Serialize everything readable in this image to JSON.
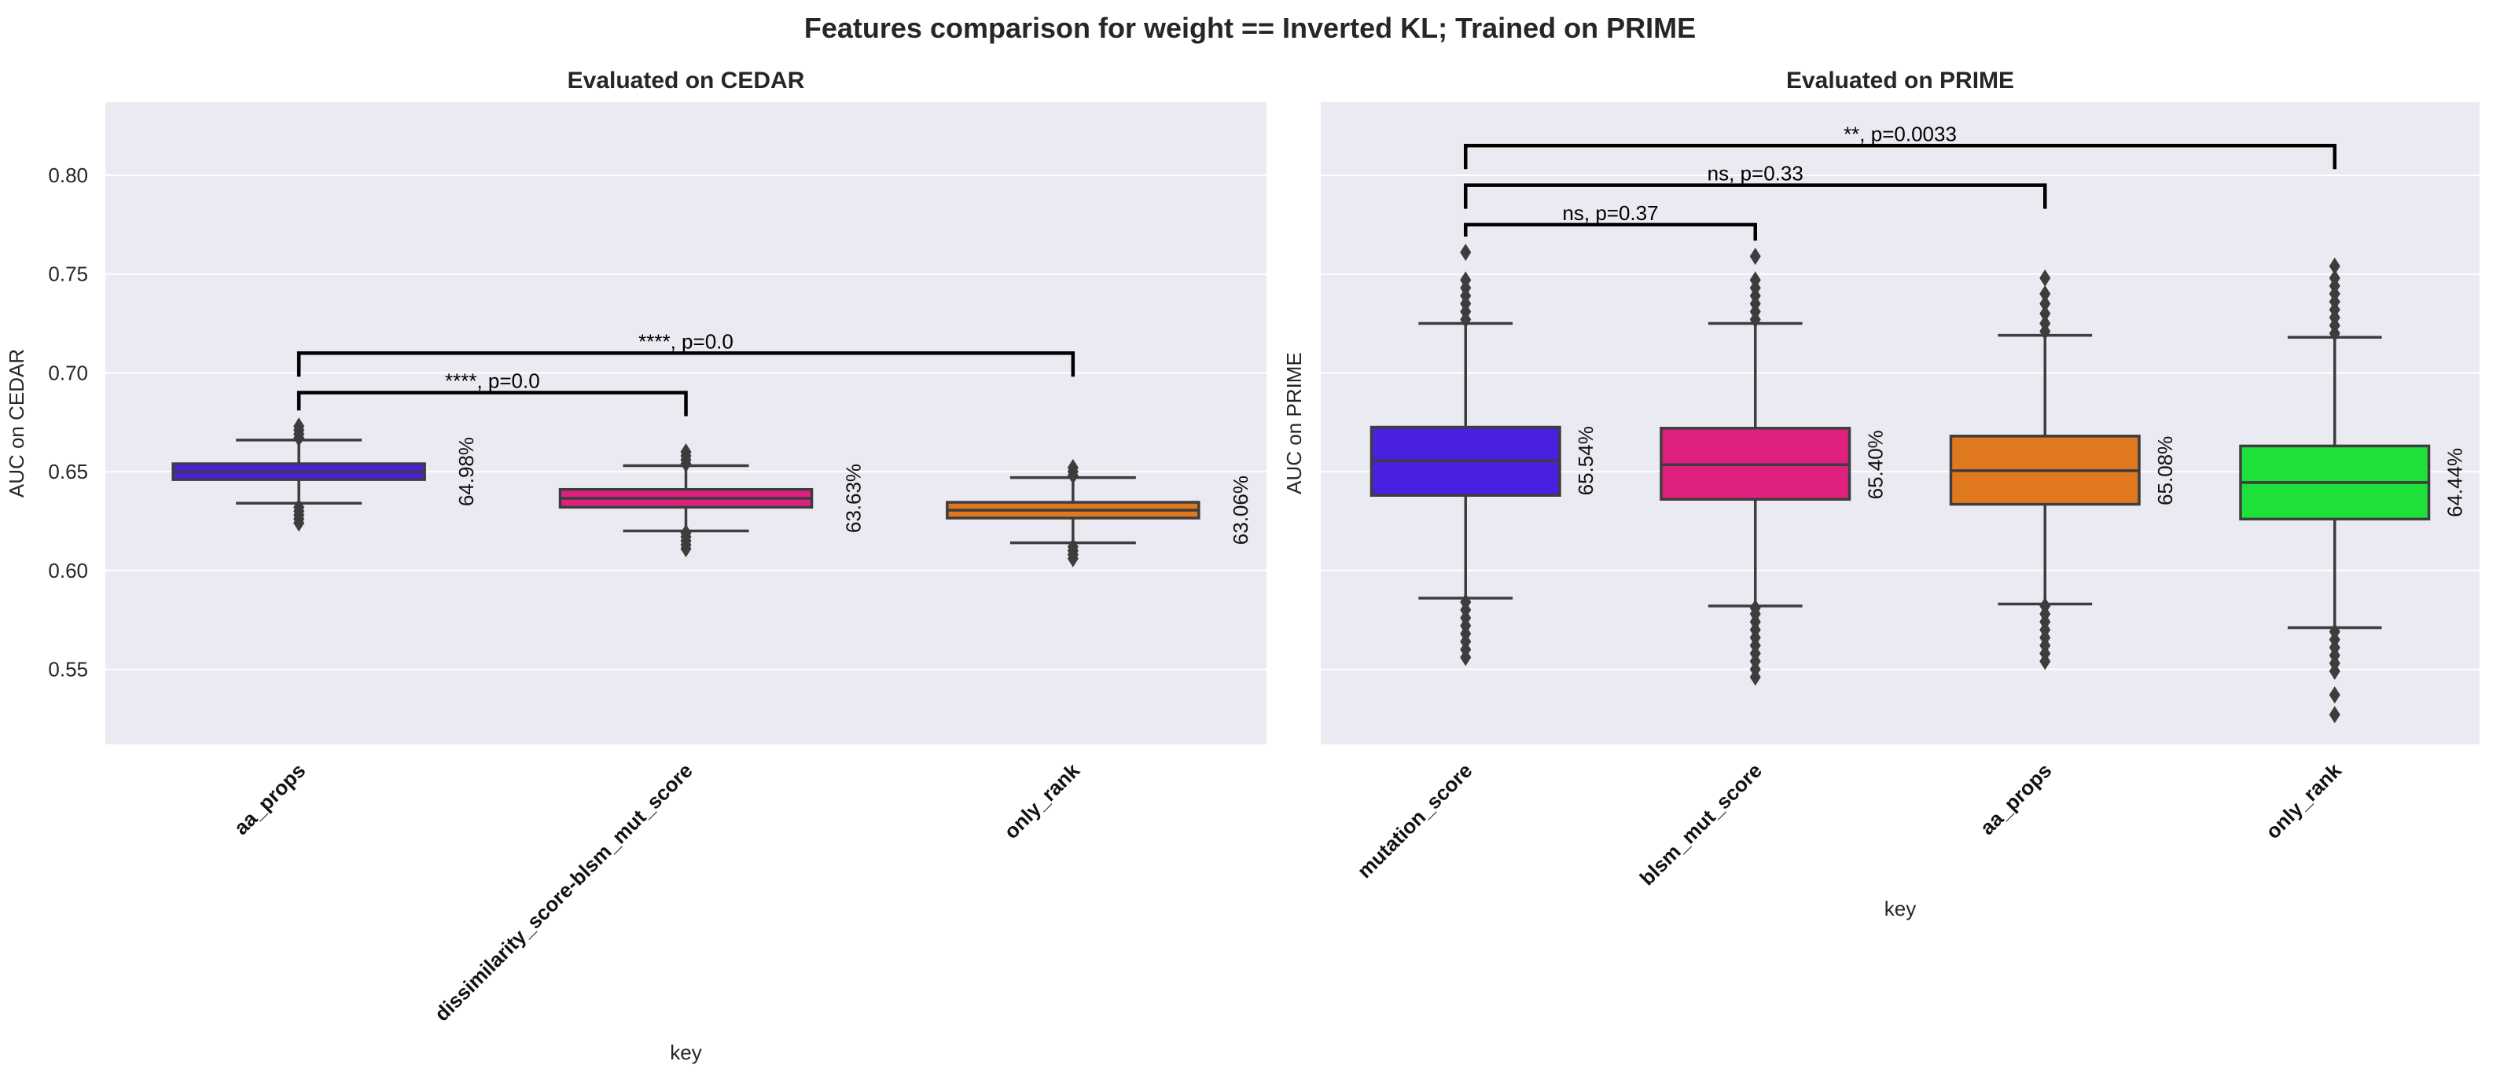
{
  "figure": {
    "suptitle": "Features comparison for weight == Inverted KL; Trained on PRIME"
  },
  "chart_data": [
    {
      "type": "box",
      "title": "Evaluated on CEDAR",
      "xlabel": "key",
      "ylabel": "AUC on CEDAR",
      "ylim": [
        0.512,
        0.837
      ],
      "yticks": [
        0.55,
        0.6,
        0.65,
        0.7,
        0.75,
        0.8
      ],
      "ytick_labels": [
        "0.55",
        "0.60",
        "0.65",
        "0.70",
        "0.75",
        "0.80"
      ],
      "grid": true,
      "background": "#EAEAF2",
      "categories": [
        "aa_props",
        "dissimilarity_score-blsm_mut_score",
        "only_rank"
      ],
      "boxes": [
        {
          "category": "aa_props",
          "q1": 0.646,
          "median": 0.65,
          "q3": 0.654,
          "whisker_low": 0.634,
          "whisker_high": 0.666,
          "outliers": [
            0.624,
            0.626,
            0.628,
            0.63,
            0.632,
            0.667,
            0.669,
            0.671,
            0.673
          ],
          "mean_label": "64.98%",
          "color": "#4B1FE0"
        },
        {
          "category": "dissimilarity_score-blsm_mut_score",
          "q1": 0.632,
          "median": 0.6365,
          "q3": 0.641,
          "whisker_low": 0.62,
          "whisker_high": 0.653,
          "outliers": [
            0.611,
            0.613,
            0.615,
            0.617,
            0.619,
            0.654,
            0.656,
            0.658,
            0.66
          ],
          "mean_label": "63.63%",
          "color": "#E0207F"
        },
        {
          "category": "only_rank",
          "q1": 0.6265,
          "median": 0.6305,
          "q3": 0.6345,
          "whisker_low": 0.614,
          "whisker_high": 0.647,
          "outliers": [
            0.606,
            0.608,
            0.61,
            0.612,
            0.648,
            0.65,
            0.652
          ],
          "mean_label": "63.06%",
          "color": "#E07820"
        }
      ],
      "annotations": [
        {
          "from": 0,
          "to": 1,
          "y": 0.69,
          "text": "****, p=0.0"
        },
        {
          "from": 0,
          "to": 2,
          "y": 0.71,
          "text": "****, p=0.0"
        }
      ]
    },
    {
      "type": "box",
      "title": "Evaluated on PRIME",
      "xlabel": "key",
      "ylabel": "AUC on PRIME",
      "ylim": [
        0.512,
        0.837
      ],
      "yticks": [
        0.55,
        0.6,
        0.65,
        0.7,
        0.75,
        0.8
      ],
      "grid": true,
      "background": "#EAEAF2",
      "categories": [
        "mutation_score",
        "blsm_mut_score",
        "aa_props",
        "only_rank"
      ],
      "boxes": [
        {
          "category": "mutation_score",
          "q1": 0.638,
          "median": 0.6555,
          "q3": 0.6725,
          "whisker_low": 0.586,
          "whisker_high": 0.725,
          "outliers": [
            0.556,
            0.56,
            0.564,
            0.568,
            0.572,
            0.576,
            0.58,
            0.584,
            0.727,
            0.731,
            0.735,
            0.739,
            0.743,
            0.747,
            0.761
          ],
          "mean_label": "65.54%",
          "color": "#4B1FE0"
        },
        {
          "category": "blsm_mut_score",
          "q1": 0.636,
          "median": 0.6535,
          "q3": 0.672,
          "whisker_low": 0.582,
          "whisker_high": 0.725,
          "outliers": [
            0.546,
            0.55,
            0.554,
            0.558,
            0.562,
            0.566,
            0.57,
            0.574,
            0.578,
            0.581,
            0.727,
            0.731,
            0.735,
            0.739,
            0.743,
            0.747,
            0.759
          ],
          "mean_label": "65.40%",
          "color": "#E0207F"
        },
        {
          "category": "aa_props",
          "q1": 0.6335,
          "median": 0.6505,
          "q3": 0.668,
          "whisker_low": 0.583,
          "whisker_high": 0.719,
          "outliers": [
            0.554,
            0.558,
            0.562,
            0.566,
            0.57,
            0.574,
            0.578,
            0.582,
            0.721,
            0.725,
            0.73,
            0.735,
            0.74,
            0.748
          ],
          "mean_label": "65.08%",
          "color": "#E07820"
        },
        {
          "category": "only_rank",
          "q1": 0.626,
          "median": 0.6445,
          "q3": 0.663,
          "whisker_low": 0.571,
          "whisker_high": 0.718,
          "outliers": [
            0.527,
            0.537,
            0.549,
            0.553,
            0.557,
            0.561,
            0.565,
            0.569,
            0.72,
            0.724,
            0.728,
            0.732,
            0.736,
            0.74,
            0.744,
            0.748,
            0.754
          ],
          "mean_label": "64.44%",
          "color": "#1FE03A"
        }
      ],
      "annotations": [
        {
          "from": 0,
          "to": 1,
          "y": 0.775,
          "text": "ns, p=0.37"
        },
        {
          "from": 0,
          "to": 2,
          "y": 0.795,
          "text": "ns, p=0.33"
        },
        {
          "from": 0,
          "to": 3,
          "y": 0.815,
          "text": "**, p=0.0033"
        }
      ]
    }
  ]
}
